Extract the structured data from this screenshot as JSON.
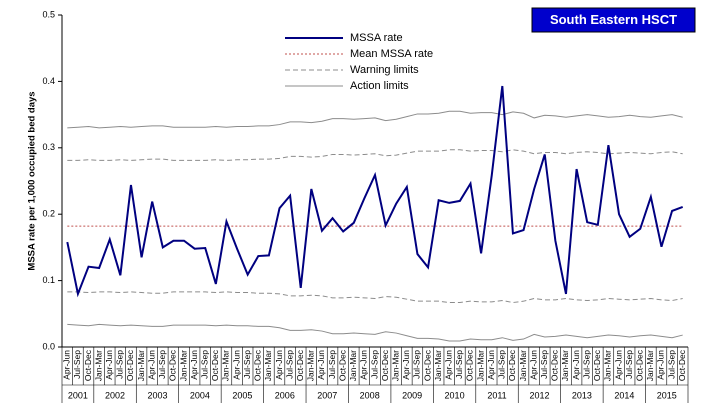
{
  "chart_data": {
    "type": "line",
    "title": "South Eastern HSCT",
    "y_label": "MSSA rate per 1,000 occupied bed days",
    "categories": [
      "Apr-Jun",
      "Jul-Sep",
      "Oct-Dec",
      "Jan-Mar",
      "Apr-Jun",
      "Jul-Sep",
      "Oct-Dec",
      "Jan-Mar",
      "Apr-Jun",
      "Jul-Sep",
      "Oct-Dec",
      "Jan-Mar",
      "Apr-Jun",
      "Jul-Sep",
      "Oct-Dec",
      "Jan-Mar",
      "Apr-Jun",
      "Jul-Sep",
      "Oct-Dec",
      "Jan-Mar",
      "Apr-Jun",
      "Jul-Sep",
      "Oct-Dec",
      "Jan-Mar",
      "Apr-Jun",
      "Jul-Sep",
      "Oct-Dec",
      "Jan-Mar",
      "Apr-Jun",
      "Jul-Sep",
      "Oct-Dec",
      "Jan-Mar",
      "Apr-Jun",
      "Jul-Sep",
      "Oct-Dec",
      "Jan-Mar",
      "Apr-Jun",
      "Jul-Sep",
      "Oct-Dec",
      "Jan-Mar",
      "Apr-Jun",
      "Jul-Sep",
      "Oct-Dec",
      "Jan-Mar",
      "Apr-Jun",
      "Jul-Sep",
      "Oct-Dec",
      "Jan-Mar",
      "Apr-Jun",
      "Jul-Sep",
      "Oct-Dec",
      "Jan-Mar",
      "Apr-Jun",
      "Jul-Sep",
      "Oct-Dec",
      "Jan-Mar",
      "Apr-Jun",
      "Jul-Sep",
      "Oct-Dec"
    ],
    "years": [
      "2001",
      "2002",
      "2003",
      "2004",
      "2005",
      "2006",
      "2007",
      "2008",
      "2009",
      "2010",
      "2011",
      "2012",
      "2013",
      "2014",
      "2015"
    ],
    "ylim": [
      0,
      0.5
    ],
    "yticks": [
      {
        "value": 0,
        "label": "0.0"
      },
      0.1,
      0.2,
      0.3,
      0.4,
      0.5
    ],
    "series": [
      {
        "name": "MSSA rate",
        "color": "#000080",
        "line_style": "solid",
        "values": [
          0.158,
          0.08,
          0.121,
          0.119,
          0.162,
          0.108,
          0.244,
          0.135,
          0.219,
          0.15,
          0.16,
          0.16,
          0.148,
          0.149,
          0.095,
          0.189,
          0.148,
          0.109,
          0.137,
          0.138,
          0.209,
          0.228,
          0.089,
          0.238,
          0.175,
          0.194,
          0.174,
          0.187,
          0.224,
          0.259,
          0.183,
          0.216,
          0.241,
          0.14,
          0.12,
          0.221,
          0.217,
          0.22,
          0.246,
          0.141,
          0.258,
          0.393,
          0.171,
          0.176,
          0.238,
          0.29,
          0.16,
          0.08,
          0.268,
          0.188,
          0.184,
          0.304,
          0.2,
          0.166,
          0.178,
          0.226,
          0.151,
          0.205,
          0.211
        ]
      },
      {
        "name": "Mean MSSA rate",
        "color": "#c0504d",
        "line_style": "dotted",
        "values": [
          0.182,
          0.182,
          0.182,
          0.182,
          0.182,
          0.182,
          0.182,
          0.182,
          0.182,
          0.182,
          0.182,
          0.182,
          0.182,
          0.182,
          0.182,
          0.182,
          0.182,
          0.182,
          0.182,
          0.182,
          0.182,
          0.182,
          0.182,
          0.182,
          0.182,
          0.182,
          0.182,
          0.182,
          0.182,
          0.182,
          0.182,
          0.182,
          0.182,
          0.182,
          0.182,
          0.182,
          0.182,
          0.182,
          0.182,
          0.182,
          0.182,
          0.182,
          0.182,
          0.182,
          0.182,
          0.182,
          0.182,
          0.182,
          0.182,
          0.182,
          0.182,
          0.182,
          0.182,
          0.182,
          0.182,
          0.182,
          0.182,
          0.182,
          0.182
        ]
      },
      {
        "name": "Warning limits",
        "color": "#8c8c8c",
        "line_style": "dashed",
        "upper": [
          0.281,
          0.281,
          0.282,
          0.281,
          0.281,
          0.282,
          0.281,
          0.282,
          0.283,
          0.283,
          0.281,
          0.281,
          0.281,
          0.281,
          0.282,
          0.281,
          0.282,
          0.282,
          0.283,
          0.283,
          0.284,
          0.287,
          0.287,
          0.286,
          0.287,
          0.29,
          0.29,
          0.289,
          0.29,
          0.291,
          0.288,
          0.289,
          0.292,
          0.295,
          0.295,
          0.295,
          0.297,
          0.297,
          0.295,
          0.296,
          0.296,
          0.294,
          0.297,
          0.295,
          0.291,
          0.293,
          0.293,
          0.291,
          0.293,
          0.294,
          0.293,
          0.291,
          0.292,
          0.293,
          0.292,
          0.291,
          0.293,
          0.294,
          0.291
        ],
        "lower": [
          0.083,
          0.083,
          0.082,
          0.083,
          0.083,
          0.082,
          0.083,
          0.082,
          0.081,
          0.081,
          0.083,
          0.083,
          0.083,
          0.083,
          0.082,
          0.083,
          0.082,
          0.082,
          0.081,
          0.081,
          0.08,
          0.077,
          0.077,
          0.078,
          0.077,
          0.074,
          0.074,
          0.075,
          0.074,
          0.073,
          0.076,
          0.075,
          0.072,
          0.069,
          0.069,
          0.069,
          0.067,
          0.067,
          0.069,
          0.068,
          0.068,
          0.07,
          0.067,
          0.069,
          0.073,
          0.071,
          0.071,
          0.073,
          0.071,
          0.07,
          0.071,
          0.073,
          0.072,
          0.071,
          0.072,
          0.073,
          0.071,
          0.07,
          0.073
        ]
      },
      {
        "name": "Action limits",
        "color": "#8c8c8c",
        "line_style": "solid",
        "upper": [
          0.33,
          0.331,
          0.332,
          0.33,
          0.331,
          0.332,
          0.331,
          0.332,
          0.333,
          0.333,
          0.331,
          0.331,
          0.331,
          0.331,
          0.332,
          0.331,
          0.332,
          0.332,
          0.333,
          0.333,
          0.335,
          0.339,
          0.339,
          0.338,
          0.34,
          0.344,
          0.344,
          0.343,
          0.344,
          0.345,
          0.341,
          0.343,
          0.347,
          0.351,
          0.351,
          0.352,
          0.355,
          0.355,
          0.352,
          0.353,
          0.353,
          0.35,
          0.354,
          0.352,
          0.345,
          0.349,
          0.348,
          0.346,
          0.348,
          0.35,
          0.348,
          0.346,
          0.347,
          0.349,
          0.347,
          0.346,
          0.348,
          0.35,
          0.346
        ],
        "lower": [
          0.034,
          0.033,
          0.032,
          0.034,
          0.033,
          0.032,
          0.033,
          0.032,
          0.031,
          0.031,
          0.033,
          0.033,
          0.033,
          0.033,
          0.032,
          0.033,
          0.032,
          0.032,
          0.031,
          0.031,
          0.029,
          0.025,
          0.025,
          0.026,
          0.024,
          0.02,
          0.02,
          0.021,
          0.02,
          0.019,
          0.023,
          0.021,
          0.017,
          0.013,
          0.013,
          0.012,
          0.009,
          0.009,
          0.012,
          0.011,
          0.011,
          0.014,
          0.01,
          0.012,
          0.019,
          0.015,
          0.016,
          0.018,
          0.016,
          0.014,
          0.016,
          0.018,
          0.017,
          0.015,
          0.017,
          0.018,
          0.016,
          0.014,
          0.018
        ]
      }
    ]
  }
}
